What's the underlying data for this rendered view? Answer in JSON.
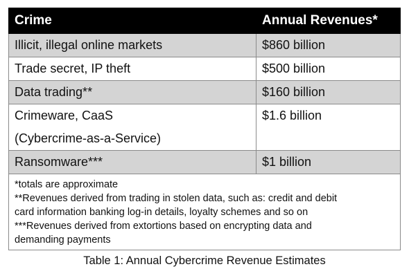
{
  "table": {
    "headers": [
      "Crime",
      "Annual Revenues*"
    ],
    "rows": [
      {
        "crime_lines": [
          "Illicit, illegal online markets"
        ],
        "revenue": "$860 billion",
        "shaded": true
      },
      {
        "crime_lines": [
          "Trade secret, IP theft"
        ],
        "revenue": "$500 billion",
        "shaded": false
      },
      {
        "crime_lines": [
          "Data trading**"
        ],
        "revenue": "$160 billion",
        "shaded": true
      },
      {
        "crime_lines": [
          "Crimeware, CaaS",
          "(Cybercrime-as-a-Service)"
        ],
        "revenue": "$1.6 billion",
        "shaded": false
      },
      {
        "crime_lines": [
          "Ransomware***"
        ],
        "revenue": "$1 billion",
        "shaded": true
      }
    ],
    "notes": [
      "*totals are approximate",
      "**Revenues derived from trading in stolen data, such as: credit and debit",
      "card information banking log-in details, loyalty schemes and so on",
      "***Revenues derived from extortions based on encrypting data and",
      "demanding payments"
    ]
  },
  "caption": "Table 1: Annual Cybercrime Revenue Estimates"
}
